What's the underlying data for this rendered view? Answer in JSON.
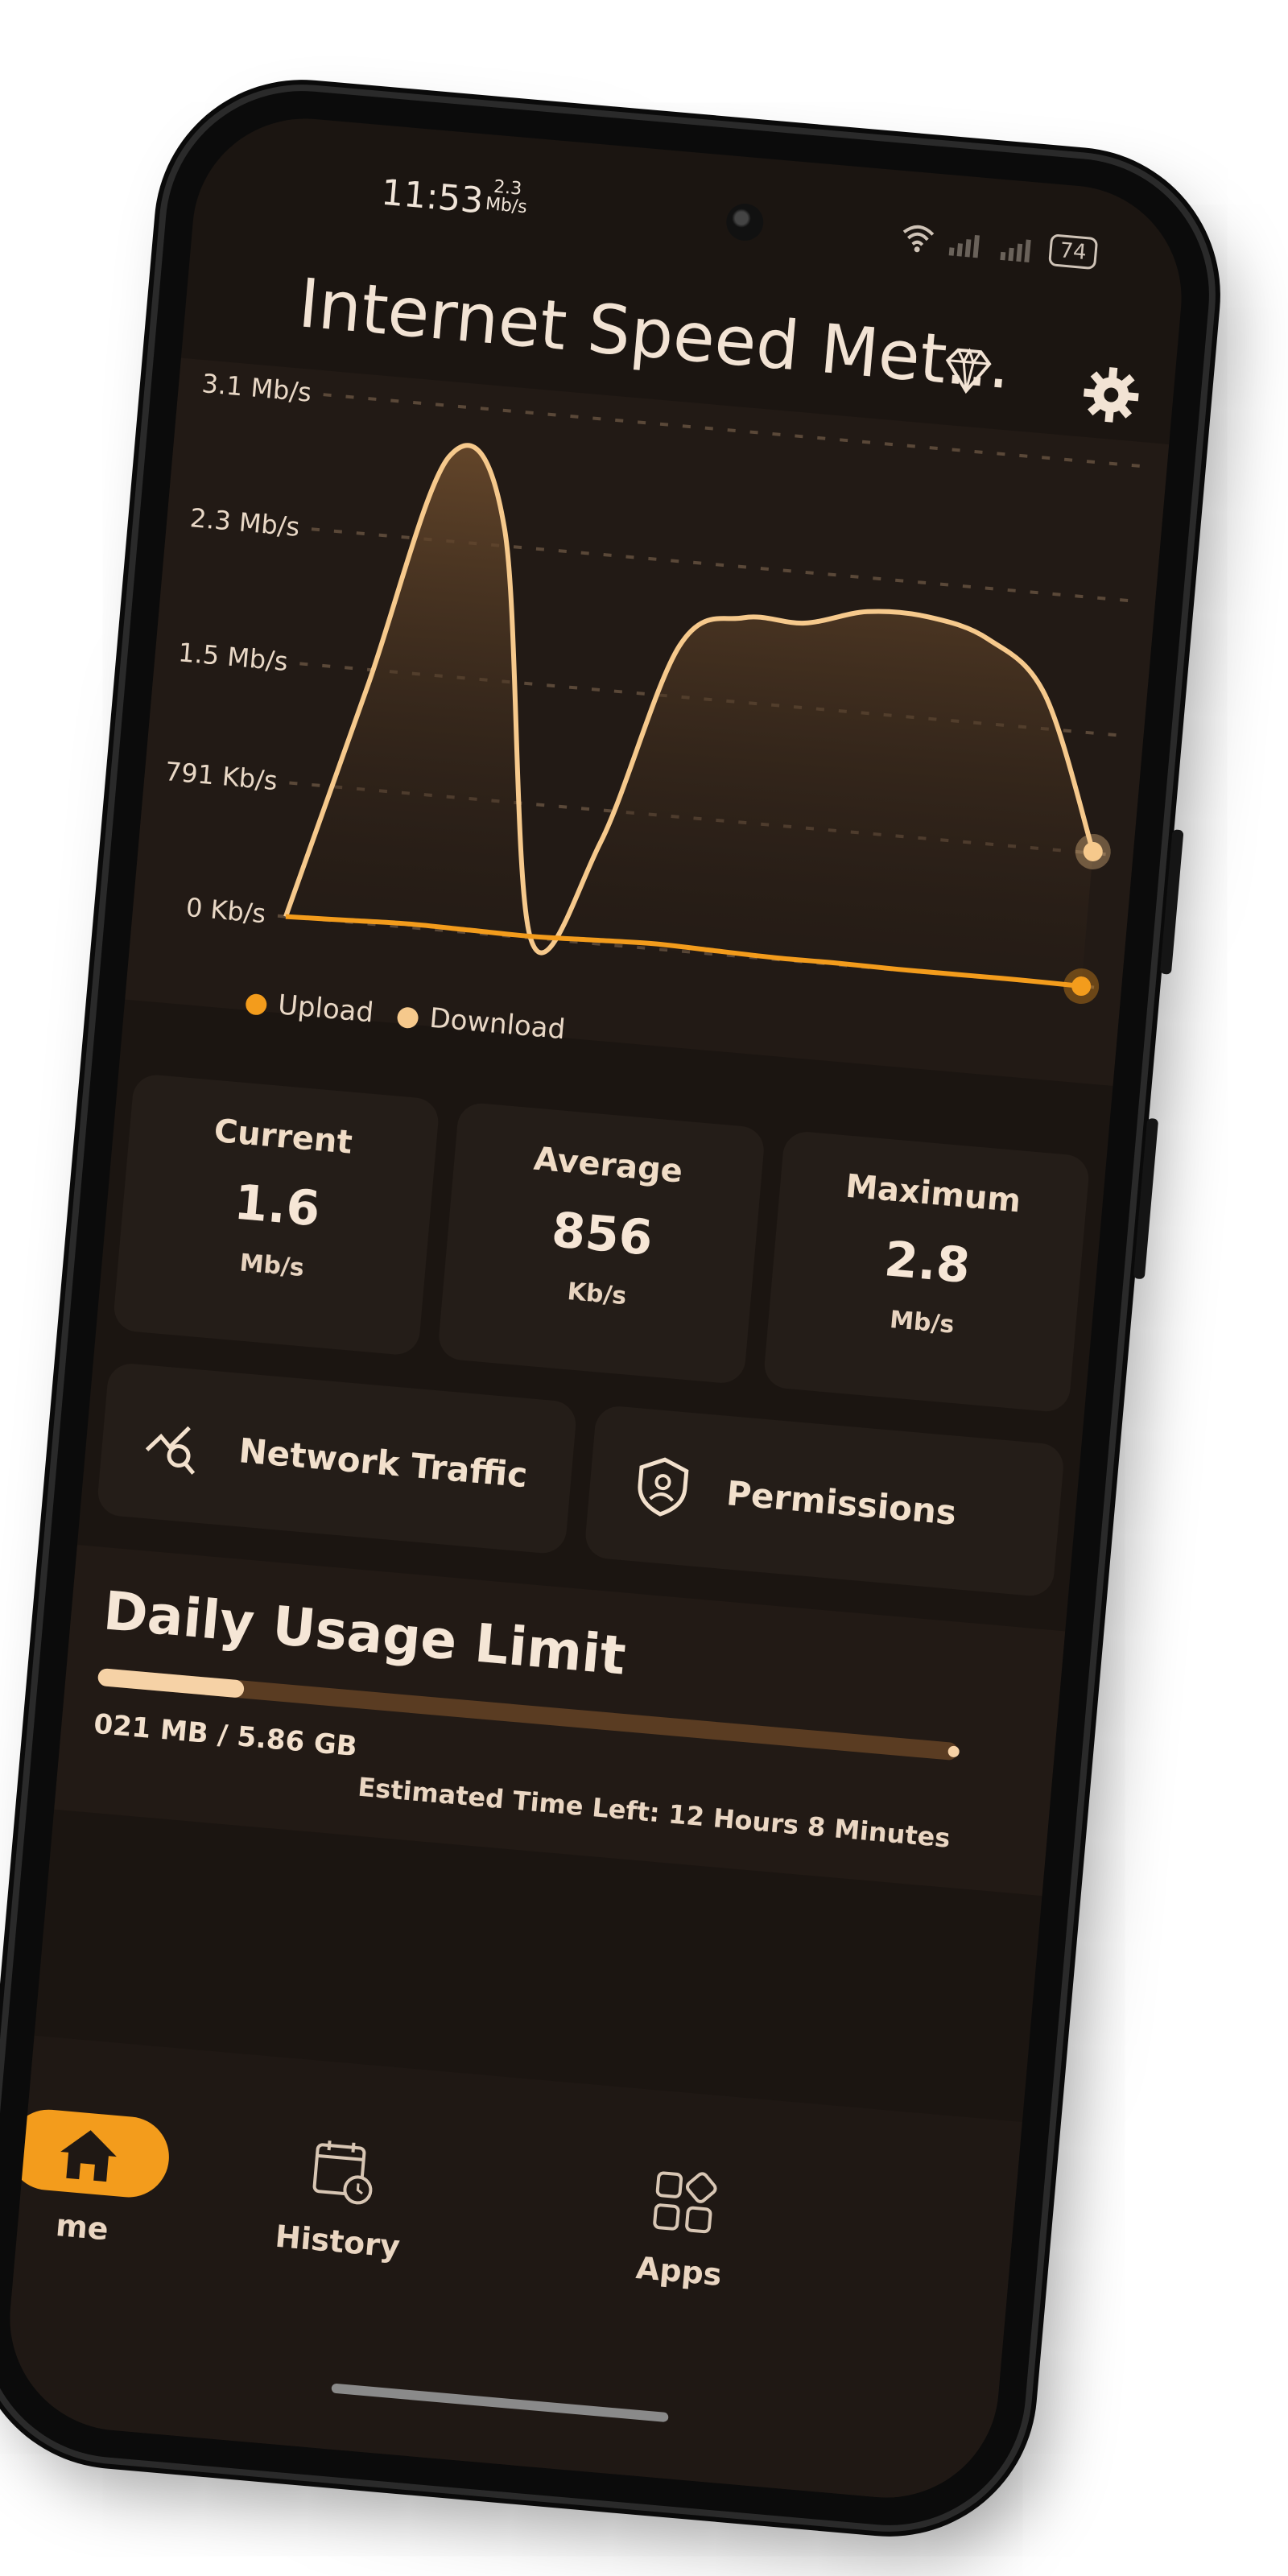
{
  "status_bar": {
    "time": "11:53",
    "net_speed_value": "2.3",
    "net_speed_unit": "Mb/s",
    "battery": "74"
  },
  "app_bar": {
    "title": "Internet Speed Met...",
    "premium_icon": "diamond-icon",
    "settings_icon": "gear-icon",
    "menu_icon": "more-vert-icon"
  },
  "chart_data": {
    "type": "area",
    "y_tick_labels": [
      "3.1 Mb/s",
      "2.3 Mb/s",
      "1.5 Mb/s",
      "791 Kb/s",
      "0 Kb/s"
    ],
    "y_tick_values_kbps": [
      3100,
      2300,
      1500,
      791,
      0
    ],
    "ylim_kbps": [
      0,
      3100
    ],
    "x": [
      0,
      1,
      2,
      3,
      4,
      5,
      6,
      7,
      8,
      9,
      10,
      11,
      12,
      13
    ],
    "series": [
      {
        "name": "Upload",
        "color": "#f39c1c",
        "values": [
          0,
          10,
          20,
          15,
          10,
          20,
          30,
          20,
          10,
          10,
          5,
          5,
          5,
          0
        ]
      },
      {
        "name": "Download",
        "color": "#f6c98c",
        "values": [
          0,
          1400,
          2800,
          2400,
          0,
          600,
          1800,
          2000,
          2000,
          2100,
          2100,
          2000,
          1700,
          800
        ]
      }
    ],
    "grid": true,
    "legend_position": "bottom-left"
  },
  "stats": [
    {
      "label": "Current",
      "value": "1.6",
      "unit": "Mb/s"
    },
    {
      "label": "Average",
      "value": "856",
      "unit": "Kb/s"
    },
    {
      "label": "Maximum",
      "value": "2.8",
      "unit": "Mb/s"
    }
  ],
  "actions": [
    {
      "label": "Network Traffic",
      "icon": "network-search-icon"
    },
    {
      "label": "Permissions",
      "icon": "shield-user-icon"
    }
  ],
  "usage": {
    "title": "Daily Usage Limit",
    "used_text": "021 MB / 5.86 GB",
    "used_fraction": 0.17,
    "eta_text": "Estimated Time Left: 12 Hours 8 Minutes"
  },
  "nav": {
    "home_label": "me",
    "history_label": "History",
    "apps_label": "Apps"
  },
  "colors": {
    "accent": "#f39c1c",
    "download": "#f6c98c",
    "background": "#1b1511",
    "card": "#241d18"
  }
}
